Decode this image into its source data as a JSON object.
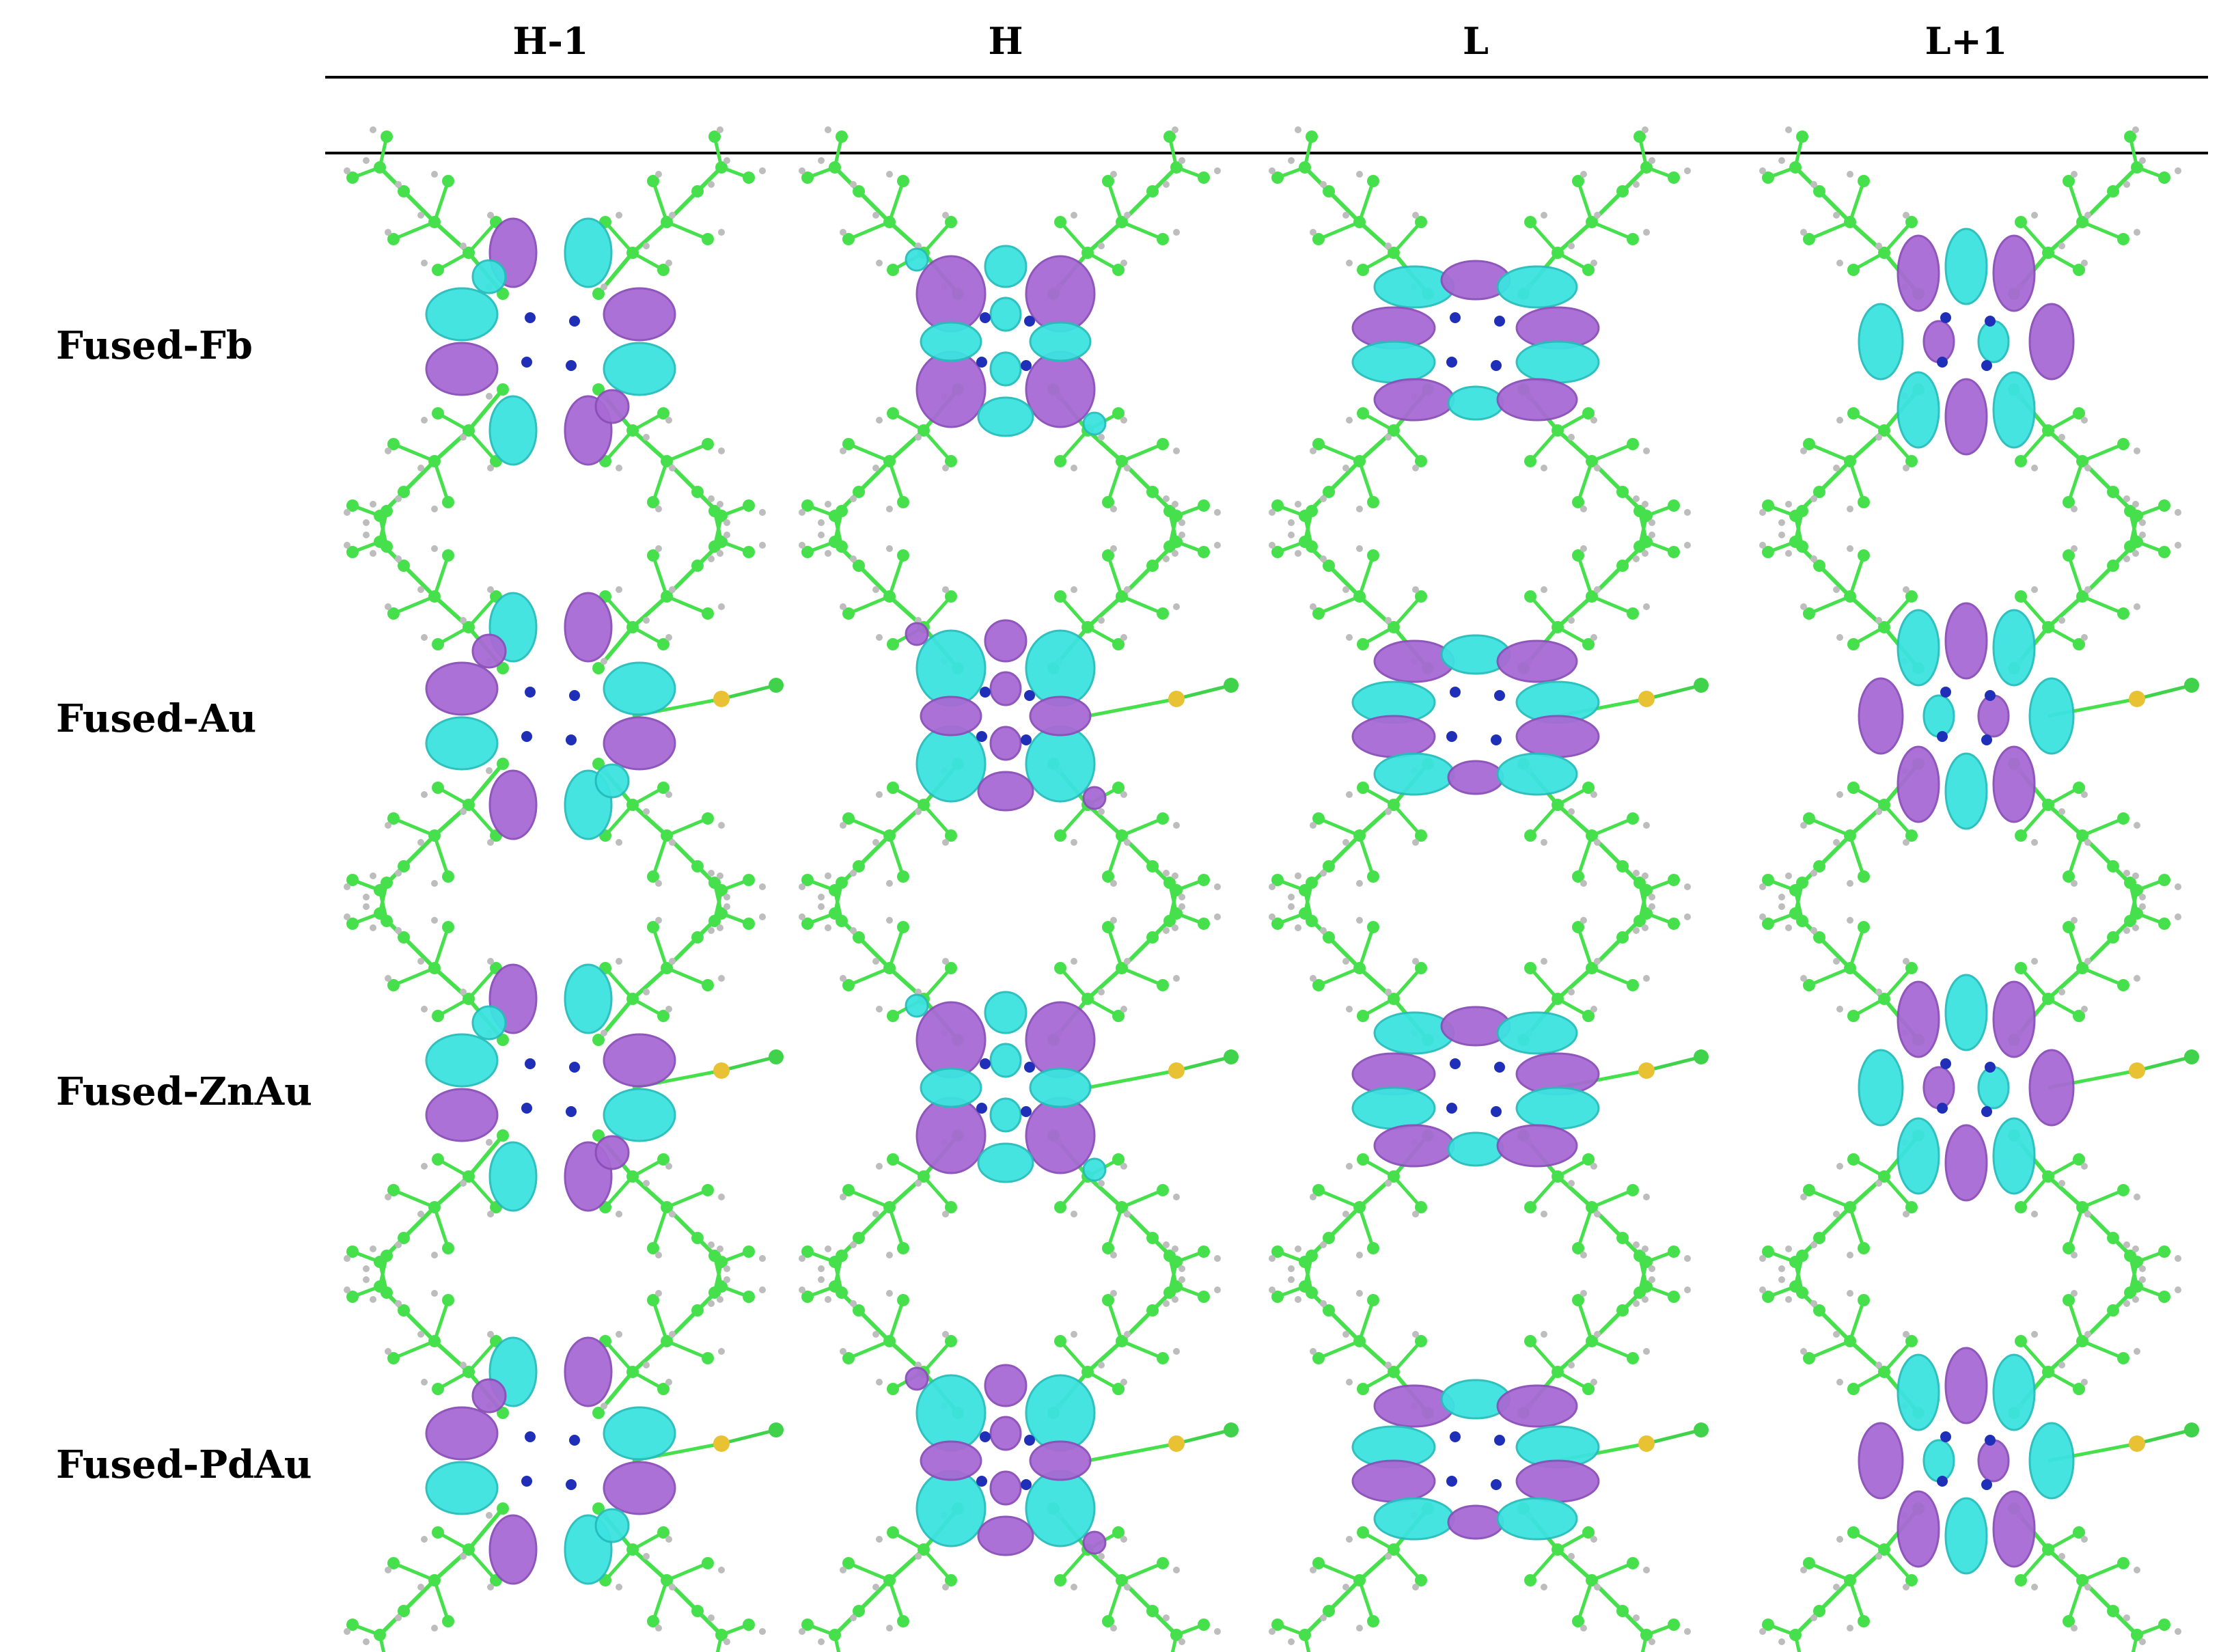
{
  "table": {
    "columns": [
      "H-1",
      "H",
      "L",
      "L+1"
    ],
    "rows": [
      {
        "label": "Fused-Fb",
        "has_au": false
      },
      {
        "label": "Fused-Au",
        "has_au": true
      },
      {
        "label": "Fused-ZnAu",
        "has_au": true
      },
      {
        "label": "Fused-PdAu",
        "has_au": true
      }
    ]
  },
  "colors": {
    "lobe_positive": "#3ce3e0",
    "lobe_negative": "#a86ad4",
    "carbon": "#47e04d",
    "hydrogen": "#bdbdbd",
    "nitrogen": "#1f2fb8",
    "gold": "#e8c233",
    "chlorine": "#3fd24a"
  },
  "icons": {
    "orbital_image": "molecular-orbital-isosurface"
  }
}
